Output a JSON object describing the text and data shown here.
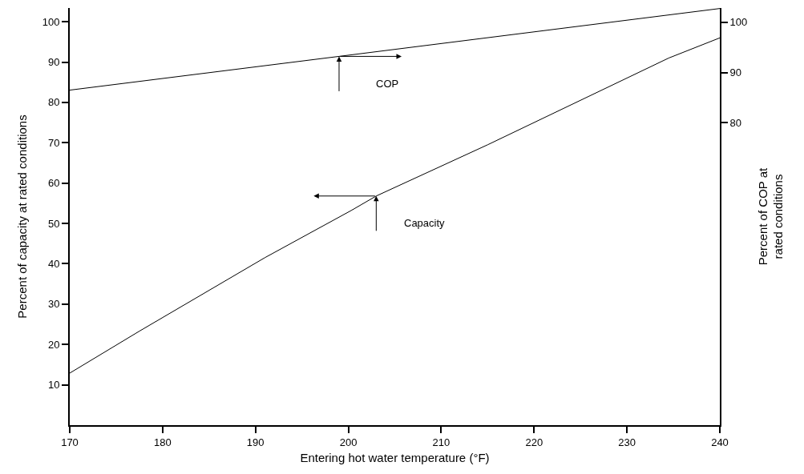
{
  "chart_data": {
    "type": "line",
    "xlabel": "Entering hot water temperature (°F)",
    "ylabel": "Percent of capacity at rated conditions",
    "y2label": "Percent of COP at\nrated conditions",
    "x": [
      170,
      177.5,
      191,
      200.3,
      203,
      215,
      234.5,
      240
    ],
    "series": [
      {
        "name": "Capacity",
        "color": "#000000",
        "values": [
          12.9,
          23.3,
          41.5,
          53.2,
          56.8,
          69.5,
          91,
          96
        ]
      },
      {
        "name": "COP",
        "color": "#000000",
        "axis": "y2",
        "x": [
          170,
          199,
          240
        ],
        "values": [
          86.5,
          93.2,
          102.7
        ]
      }
    ],
    "xlim": [
      170,
      240
    ],
    "xticks": [
      170,
      180,
      190,
      200,
      210,
      220,
      230,
      240
    ],
    "ylim": [
      0,
      103.4
    ],
    "yticks": [
      10,
      20,
      30,
      40,
      50,
      60,
      70,
      80,
      90,
      100
    ],
    "y2lim": [
      20,
      102.8
    ],
    "y2ticks": [
      80,
      90,
      100
    ],
    "grid": false,
    "legend": false,
    "marker": "none",
    "line_style": "solid"
  }
}
